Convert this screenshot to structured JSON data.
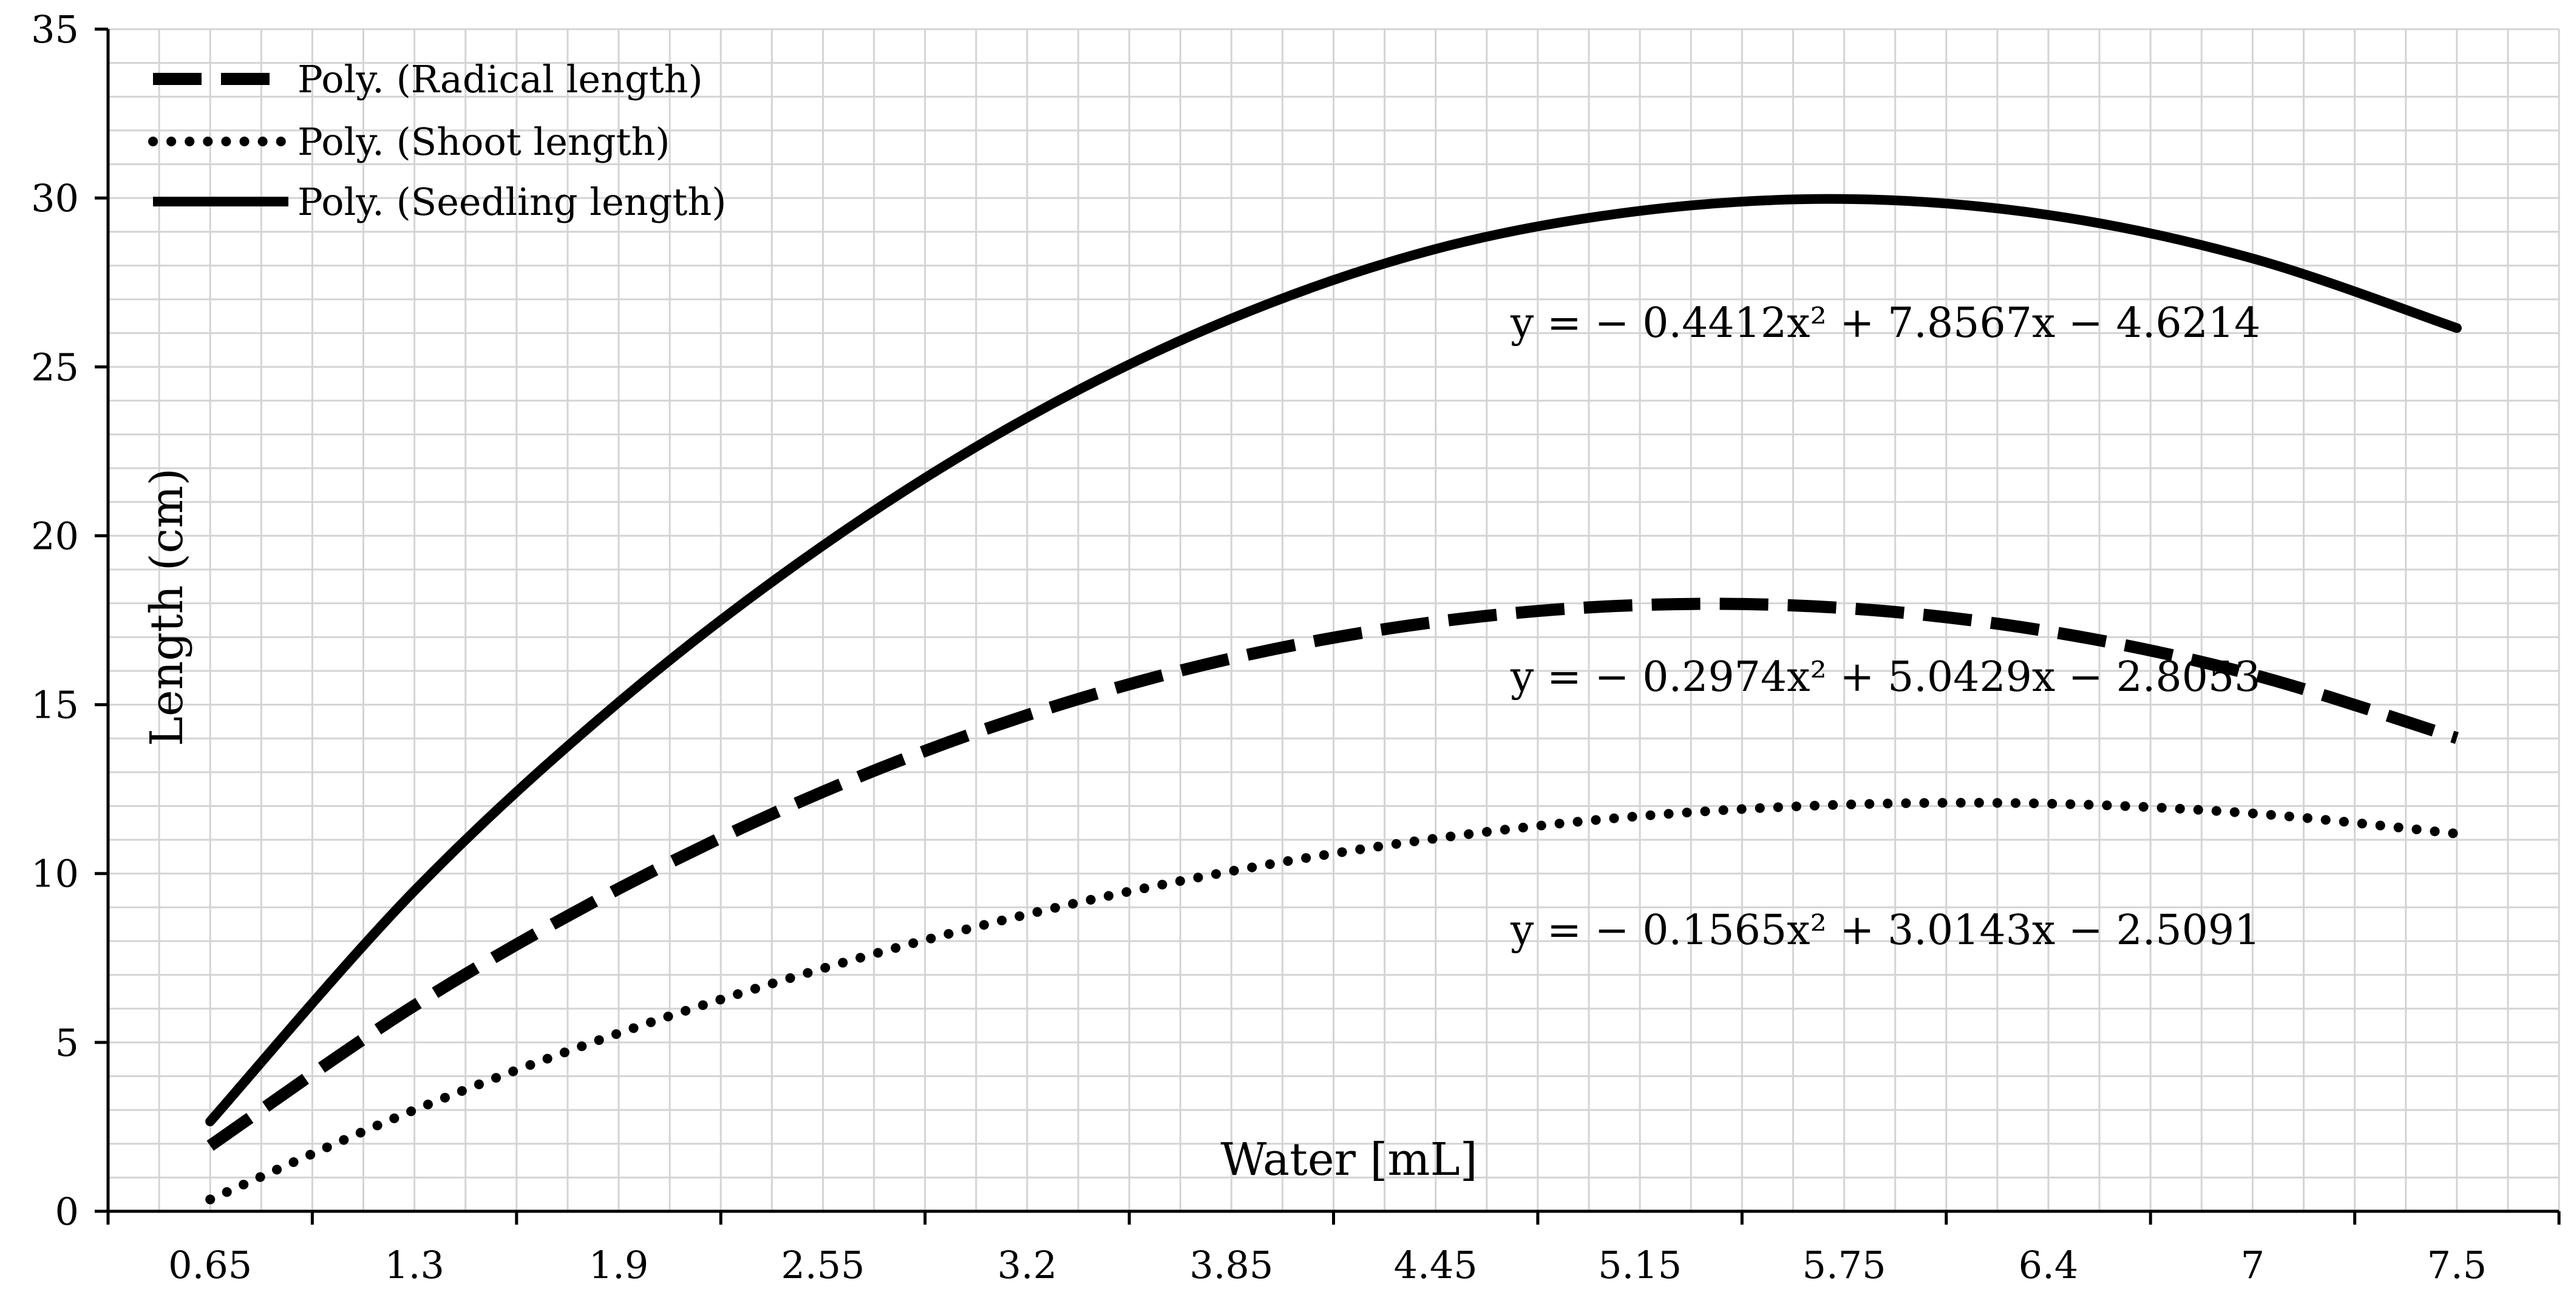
{
  "chart_data": {
    "type": "line",
    "title": "",
    "xlabel": "Water [mL]",
    "ylabel": "Length (cm)",
    "ylim": [
      0,
      35
    ],
    "y_ticks": [
      0,
      5,
      10,
      15,
      20,
      25,
      30,
      35
    ],
    "categories": [
      "0.65",
      "1.3",
      "1.9",
      "2.55",
      "3.2",
      "3.85",
      "4.45",
      "5.15",
      "5.75",
      "6.4",
      "7",
      "7.5"
    ],
    "grid": true,
    "legend_position": "top-left",
    "series": [
      {
        "name": "Poly. (Radical length)",
        "style": "dashed",
        "coefficients": [
          -0.2974,
          5.0429,
          -2.8053
        ],
        "equation": "y = − 0.2974x² + 5.0429x − 2.8053",
        "values": [
          1.94,
          6.09,
          9.55,
          12.42,
          14.69,
          16.37,
          17.45,
          17.95,
          17.86,
          17.17,
          15.89,
          14.01
        ]
      },
      {
        "name": "Poly. (Shoot length)",
        "style": "dotted",
        "coefficients": [
          -0.1565,
          3.0143,
          -2.5091
        ],
        "equation": "y = − 0.1565x² + 3.0143x − 2.5091",
        "values": [
          0.35,
          3.0,
          5.27,
          7.19,
          8.79,
          10.07,
          11.04,
          11.7,
          12.04,
          12.07,
          11.78,
          11.18
        ]
      },
      {
        "name": "Poly. (Seedling length)",
        "style": "solid",
        "coefficients": [
          -0.4412,
          7.8567,
          -4.6214
        ],
        "equation": "y = − 0.4412x² + 7.8567x − 4.6214",
        "values": [
          2.66,
          9.49,
          15.07,
          19.71,
          23.5,
          26.43,
          28.49,
          29.62,
          29.97,
          29.5,
          28.21,
          26.15
        ]
      }
    ]
  }
}
